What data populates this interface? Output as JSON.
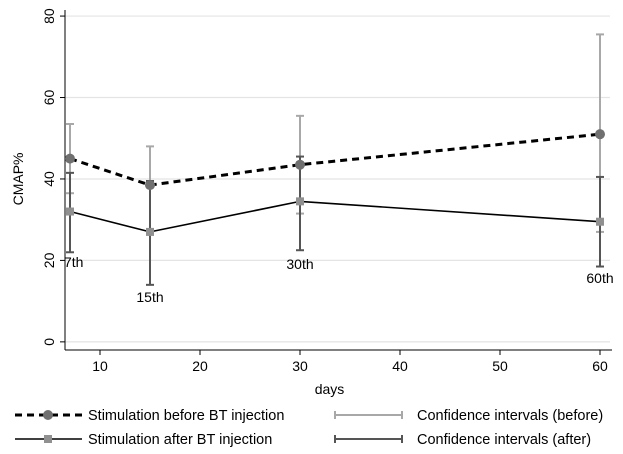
{
  "chart_data": {
    "type": "line",
    "xlabel": "days",
    "ylabel": "CMAP%",
    "x_ticks": [
      10,
      20,
      30,
      40,
      50,
      60
    ],
    "y_ticks": [
      0,
      20,
      40,
      60,
      80
    ],
    "xlim": [
      6.5,
      61
    ],
    "ylim": [
      -2,
      81
    ],
    "grid": true,
    "legend_position": "bottom",
    "x": [
      7,
      15,
      30,
      60
    ],
    "point_labels": [
      "7th",
      "15th",
      "30th",
      "60th"
    ],
    "series": [
      {
        "name": "Stimulation before BT injection",
        "line_style": "dashed",
        "marker": "circle",
        "color": "#000000",
        "marker_color": "#707070",
        "values": [
          45,
          38.5,
          43.5,
          51
        ],
        "ci_low": [
          36.5,
          27,
          31.5,
          27
        ],
        "ci_high": [
          53.5,
          48,
          55.5,
          75.5
        ],
        "ci_color": "#a8a8a8"
      },
      {
        "name": "Stimulation after BT injection",
        "line_style": "solid",
        "marker": "square",
        "color": "#000000",
        "marker_color": "#909090",
        "values": [
          32,
          27,
          34.5,
          29.5
        ],
        "ci_low": [
          22,
          14,
          22.5,
          18.5
        ],
        "ci_high": [
          41.5,
          39.5,
          45.5,
          40.5
        ],
        "ci_color": "#555555"
      }
    ],
    "legend": [
      {
        "label": "Stimulation before BT injection",
        "kind": "line",
        "style": "dashed",
        "marker": "circle"
      },
      {
        "label": "Confidence intervals (before)",
        "kind": "ci",
        "color": "#a8a8a8"
      },
      {
        "label": "Stimulation after BT injection",
        "kind": "line",
        "style": "solid",
        "marker": "square"
      },
      {
        "label": "Confidence intervals (after)",
        "kind": "ci",
        "color": "#555555"
      }
    ],
    "colors": {
      "grid": "#e4e4e4",
      "axis": "#000000"
    }
  }
}
